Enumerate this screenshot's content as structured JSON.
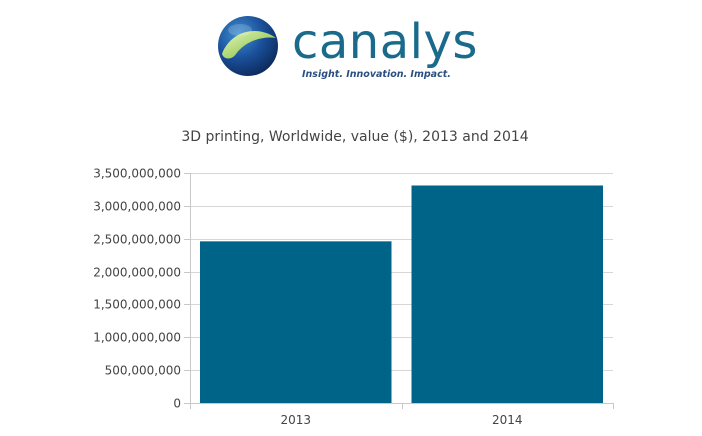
{
  "logo": {
    "wordmark": "canalys",
    "tagline": "Insight. Innovation. Impact.",
    "colors": {
      "brand": "#1a6a8c",
      "tagline": "#2a4f80",
      "globe_dark": "#123a78",
      "globe_green": "#7fbf2e"
    }
  },
  "chart_data": {
    "type": "bar",
    "title": "3D printing, Worldwide, value ($), 2013 and 2014",
    "categories": [
      "2013",
      "2014"
    ],
    "series": [
      {
        "values": [
          2460000000,
          3310000000
        ],
        "color": "#006488"
      }
    ],
    "ylim": [
      0,
      3500000000
    ],
    "yticks": [
      0,
      500000000,
      1000000000,
      1500000000,
      2000000000,
      2500000000,
      3000000000,
      3500000000
    ],
    "ytick_labels": [
      "0",
      "500,000,000",
      "1,000,000,000",
      "1,500,000,000",
      "2,000,000,000",
      "2,500,000,000",
      "3,000,000,000",
      "3,500,000,000"
    ],
    "xlabel": "",
    "ylabel": "",
    "grid": true,
    "legend": "none"
  }
}
